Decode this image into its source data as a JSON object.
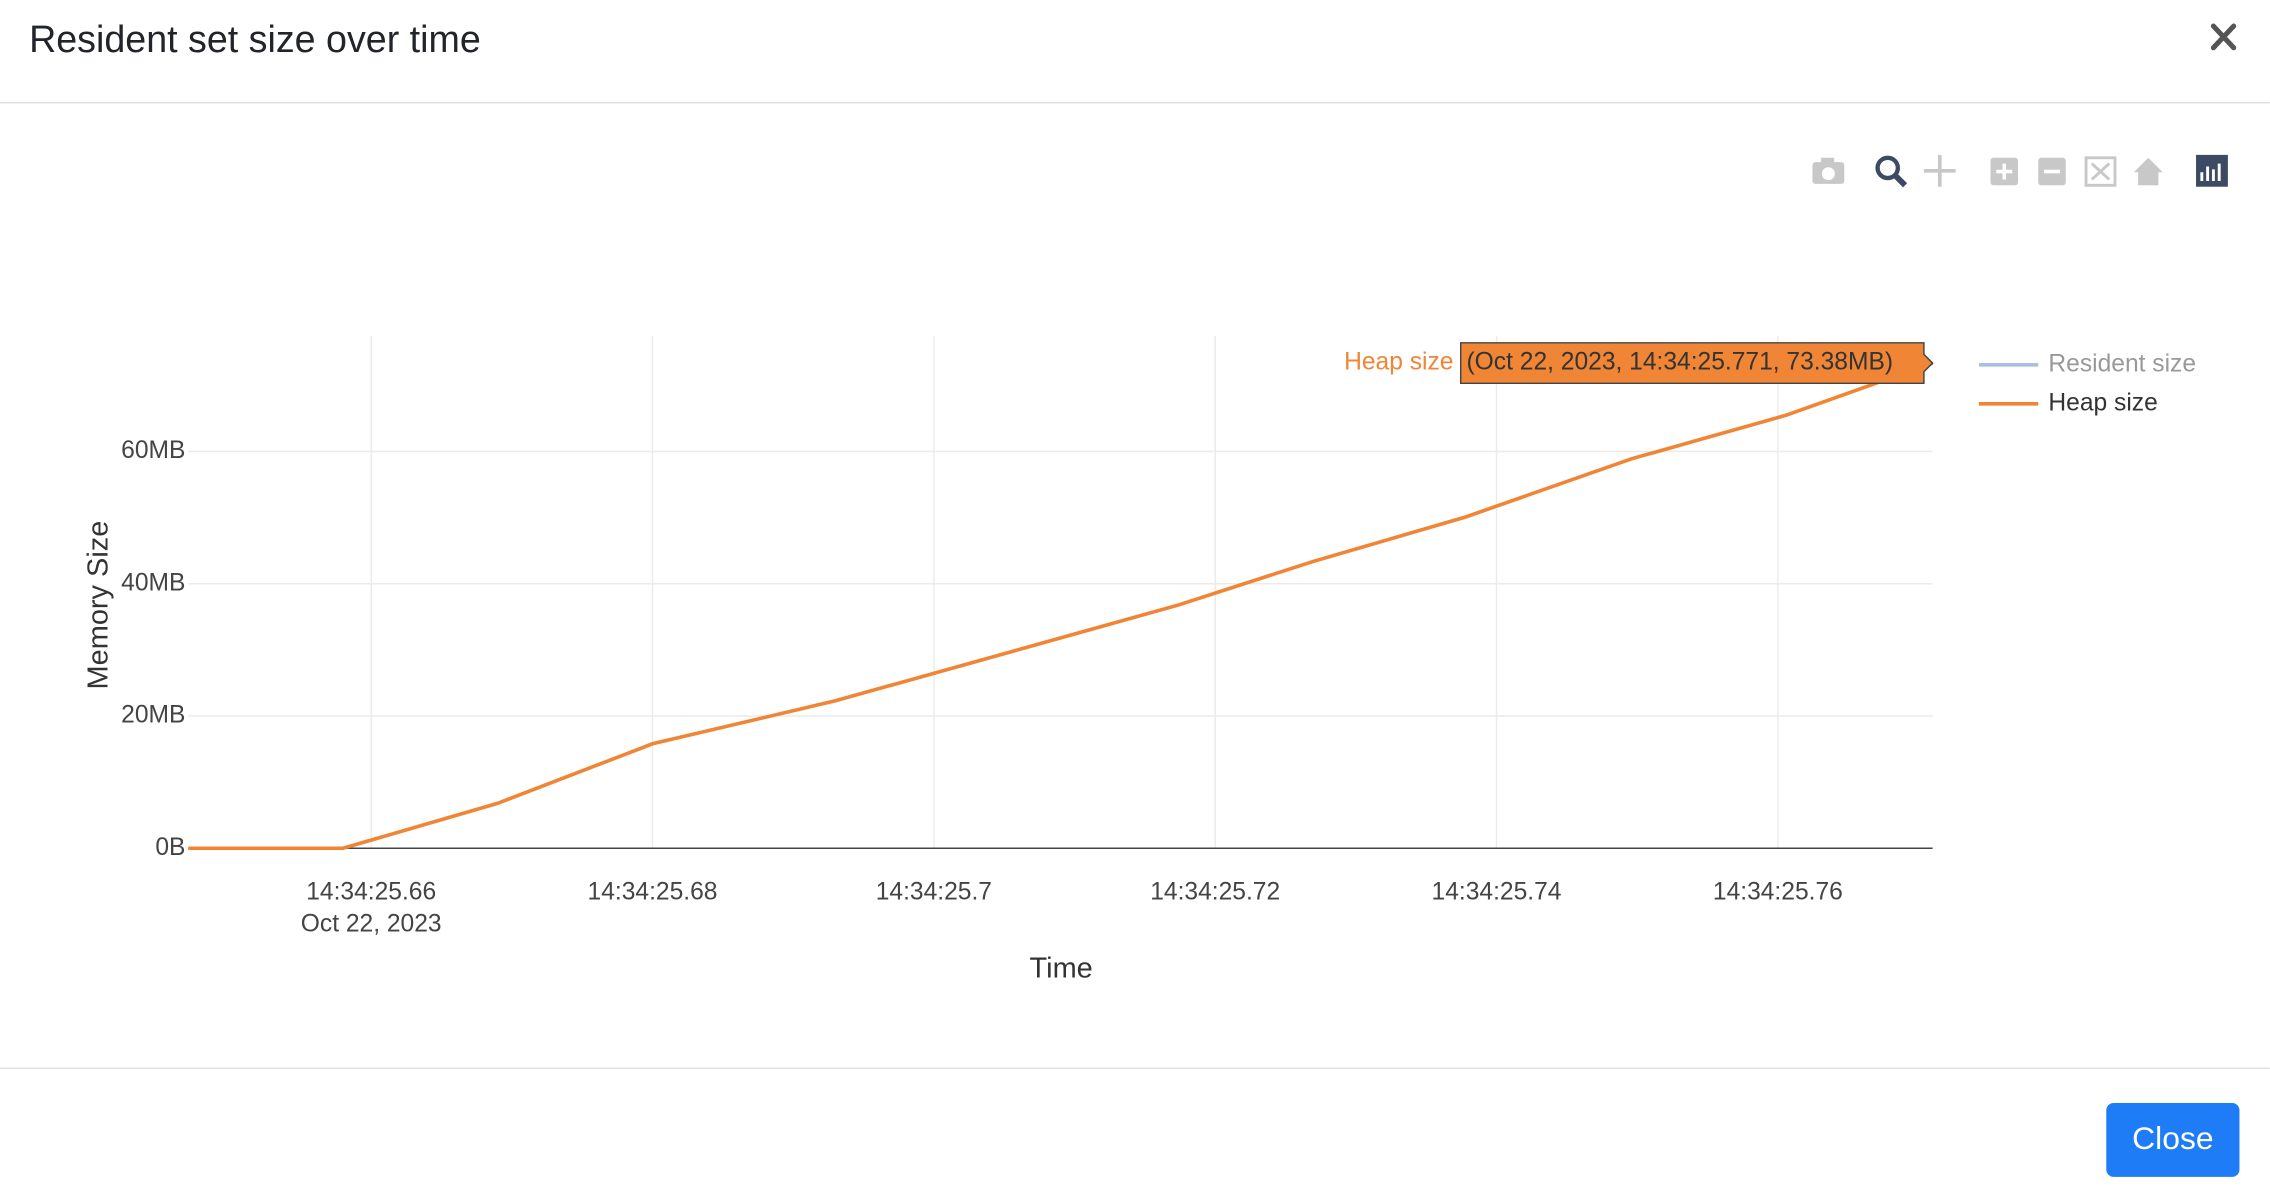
{
  "modal": {
    "title": "Resident set size over time",
    "close_button": "Close"
  },
  "chart_data": {
    "type": "line",
    "x_title": "Time",
    "y_title": "Memory Size",
    "x": [
      25.647,
      25.658,
      25.669,
      25.68,
      25.693,
      25.7174,
      25.727,
      25.7378,
      25.7496,
      25.7606,
      25.771
    ],
    "xlim": [
      25.647,
      25.771
    ],
    "xticks": [
      {
        "value": 25.66,
        "label": "14:34:25.66",
        "sublabel": "Oct 22, 2023"
      },
      {
        "value": 25.68,
        "label": "14:34:25.68"
      },
      {
        "value": 25.7,
        "label": "14:34:25.7"
      },
      {
        "value": 25.72,
        "label": "14:34:25.72"
      },
      {
        "value": 25.74,
        "label": "14:34:25.74"
      },
      {
        "value": 25.76,
        "label": "14:34:25.76"
      }
    ],
    "ylim": [
      0,
      77.5
    ],
    "yticks": [
      {
        "value": 0,
        "label": "0B"
      },
      {
        "value": 20,
        "label": "20MB"
      },
      {
        "value": 40,
        "label": "40MB"
      },
      {
        "value": 60,
        "label": "60MB"
      }
    ],
    "grid": true,
    "series": [
      {
        "name": "Resident size",
        "color": "#a9bfe3",
        "visible": "legendonly"
      },
      {
        "name": "Heap size",
        "color": "#ef8535",
        "values": [
          0,
          0,
          6.8,
          15.8,
          22.3,
          36.8,
          43.4,
          50.1,
          58.9,
          65.5,
          73.38
        ]
      }
    ],
    "hover": {
      "text": "(Oct 22, 2023, 14:34:25.771, 73.38MB)"
    }
  }
}
